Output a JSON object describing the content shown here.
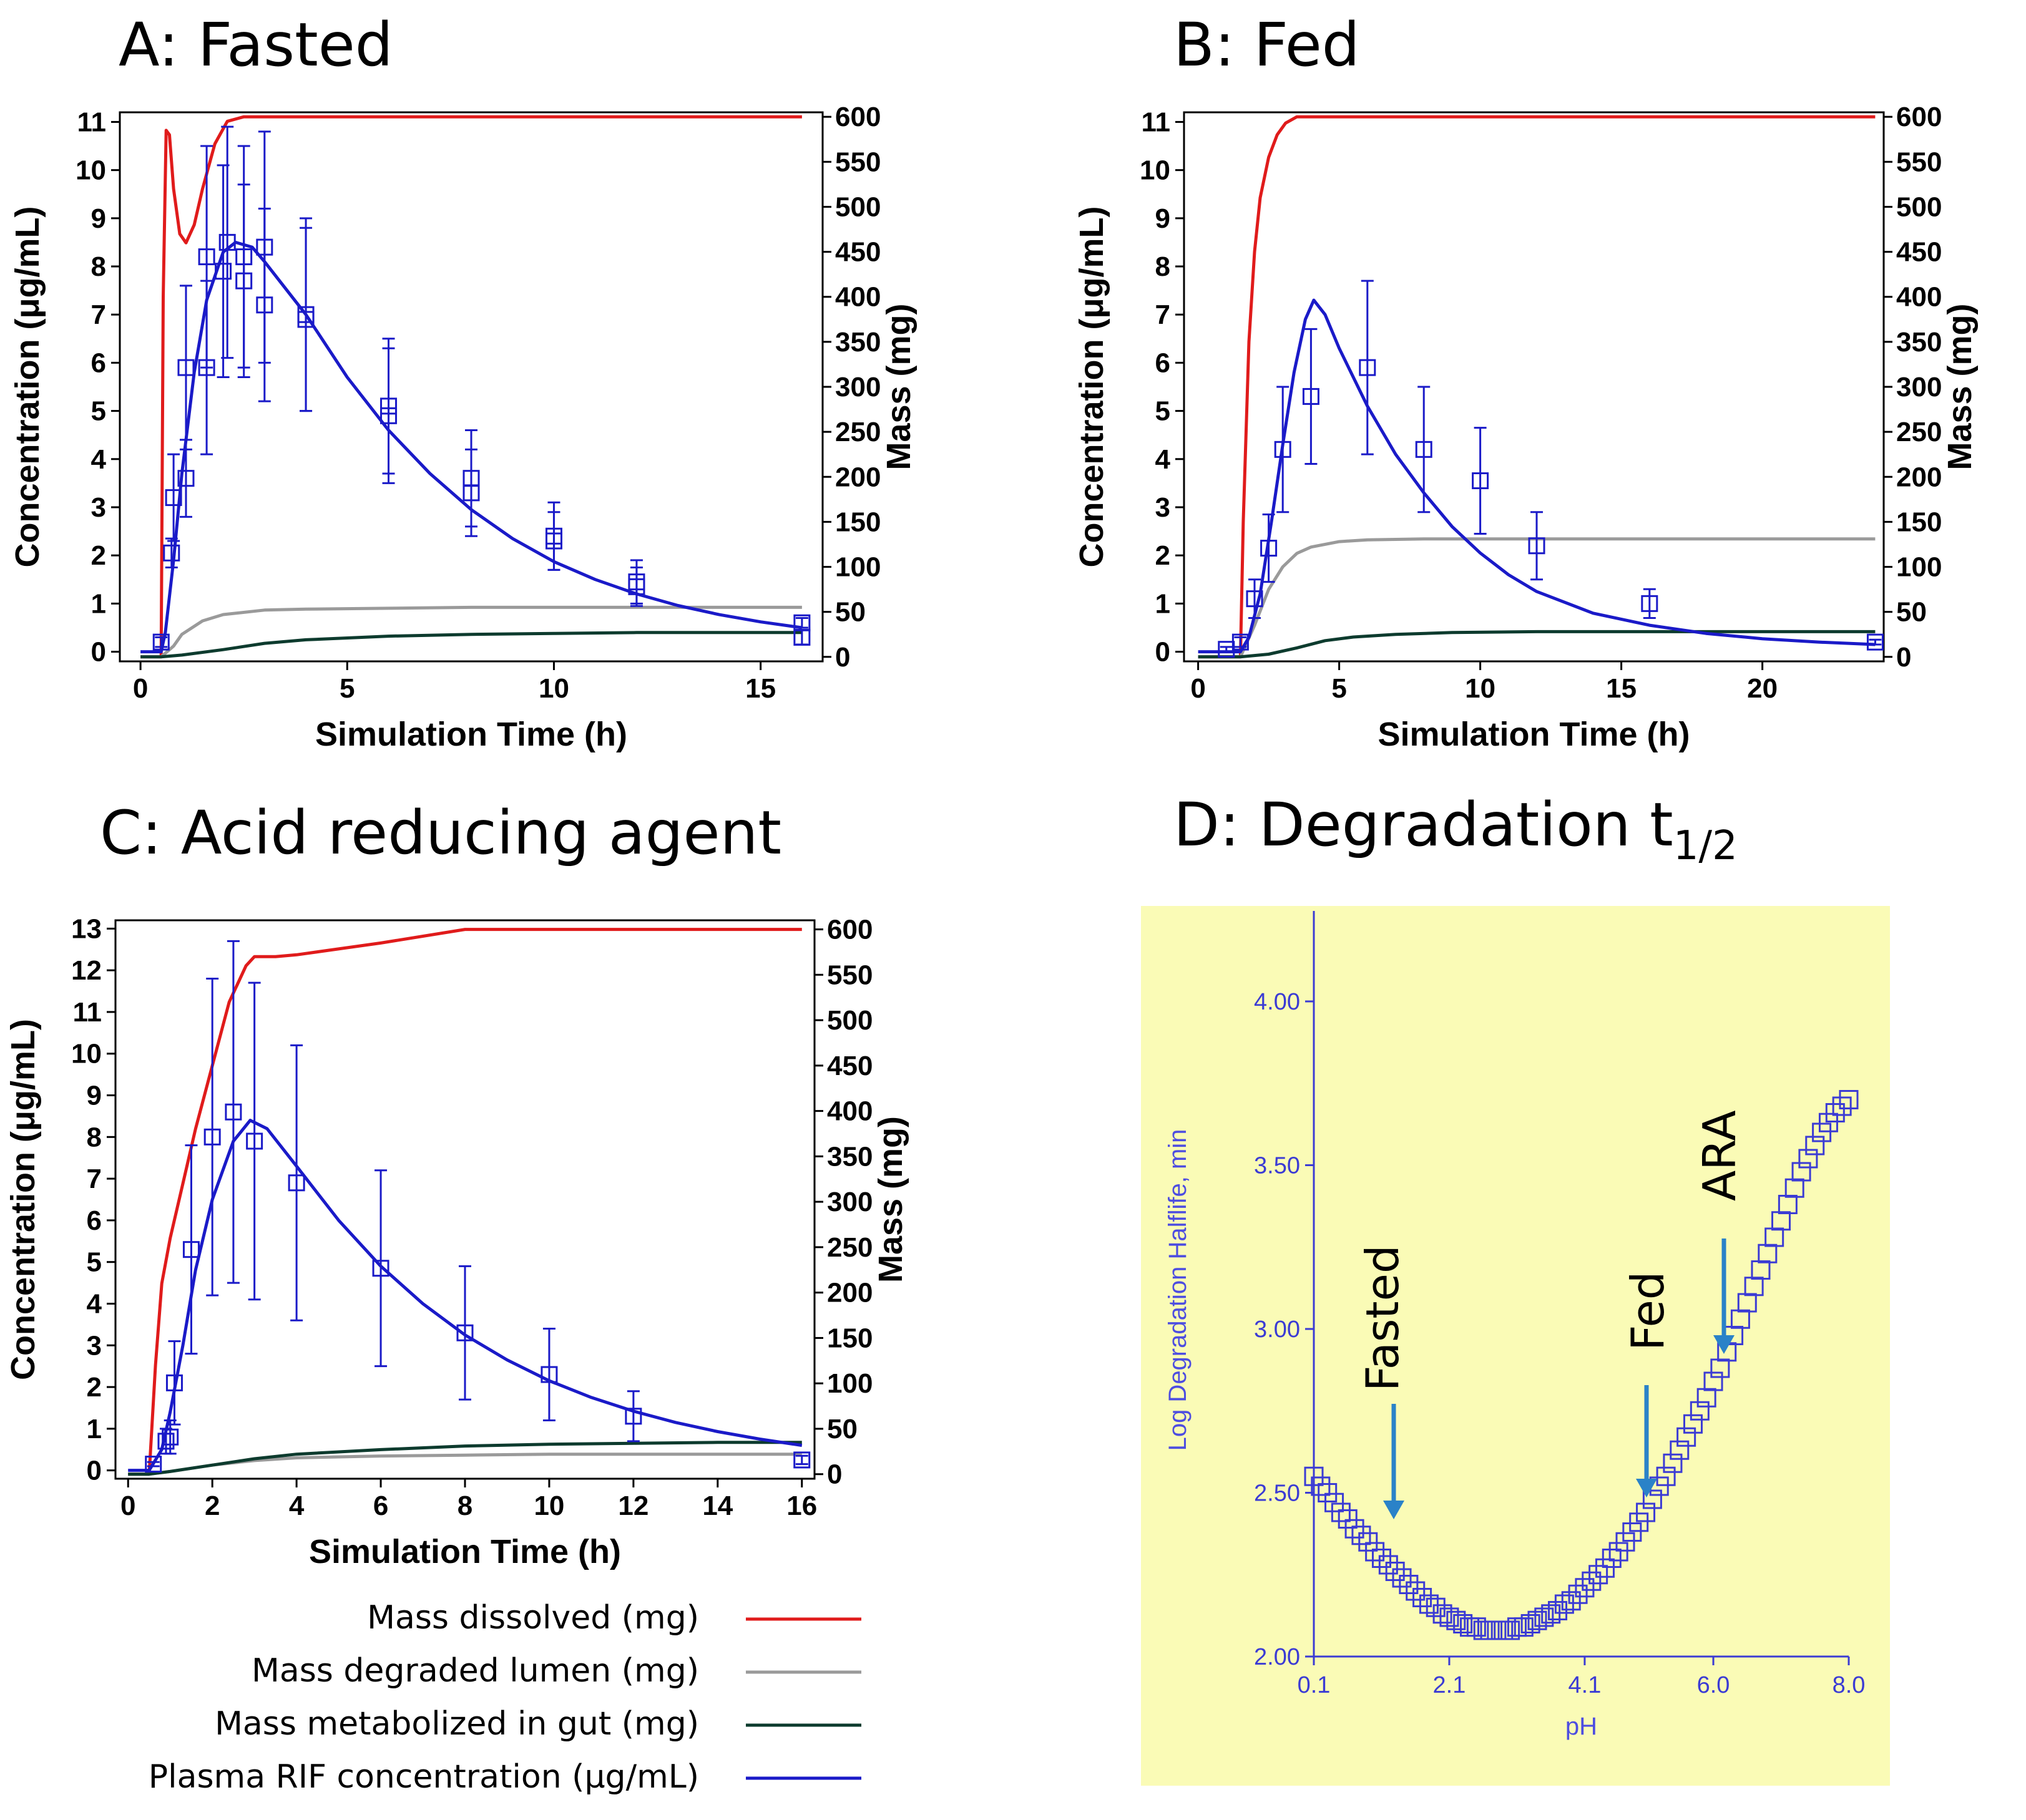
{
  "colors": {
    "dissolved": "#e01b1b",
    "degraded": "#9a9a9a",
    "metabolized": "#0d3b2e",
    "plasma": "#1a1ac8",
    "panel_d_bg": "#fafbb6",
    "panel_d_ink": "#3b3bd4",
    "arrow": "#2a82c8"
  },
  "legend": [
    {
      "label": "Mass dissolved (mg)",
      "color_key": "dissolved"
    },
    {
      "label": "Mass degraded lumen (mg)",
      "color_key": "degraded"
    },
    {
      "label": "Mass metabolized in gut (mg)",
      "color_key": "metabolized"
    },
    {
      "label": "Plasma RIF concentration (μg/mL)",
      "color_key": "plasma"
    }
  ],
  "chart_data": [
    {
      "id": "A",
      "type": "line",
      "title": "A: Fasted",
      "xlabel": "Simulation Time (h)",
      "ylabel": "Concentration (μg/mL)",
      "y2label": "Mass (mg)",
      "xlim": [
        -0.5,
        16.5
      ],
      "ylim": [
        -0.2,
        11.2
      ],
      "y2lim": [
        -5,
        605
      ],
      "xticks": [
        0,
        5,
        10,
        15
      ],
      "yticks": [
        0,
        1,
        2,
        3,
        4,
        5,
        6,
        7,
        8,
        9,
        10,
        11
      ],
      "y2ticks": [
        0,
        50,
        100,
        150,
        200,
        250,
        300,
        350,
        400,
        450,
        500,
        550,
        600
      ],
      "series": [
        {
          "name": "Mass dissolved (mg)",
          "axis": "right",
          "color_key": "dissolved",
          "x": [
            0,
            0.5,
            0.55,
            0.62,
            0.7,
            0.8,
            0.95,
            1.1,
            1.3,
            1.5,
            1.8,
            2.1,
            2.5,
            3,
            16
          ],
          "y": [
            0,
            0,
            400,
            585,
            580,
            520,
            470,
            460,
            480,
            520,
            570,
            595,
            600,
            600,
            600
          ]
        },
        {
          "name": "Mass degraded lumen (mg)",
          "axis": "right",
          "color_key": "degraded",
          "x": [
            0,
            0.5,
            0.8,
            1,
            1.5,
            2,
            3,
            4,
            6,
            8,
            10,
            16
          ],
          "y": [
            0,
            0,
            12,
            25,
            40,
            47,
            52,
            53,
            54,
            55,
            55,
            55
          ]
        },
        {
          "name": "Mass metabolized in gut (mg)",
          "axis": "right",
          "color_key": "metabolized",
          "x": [
            0,
            0.5,
            1,
            2,
            3,
            4,
            6,
            8,
            10,
            12,
            16
          ],
          "y": [
            0,
            0,
            2,
            8,
            15,
            19,
            23,
            25,
            26,
            27,
            27
          ]
        },
        {
          "name": "Plasma RIF concentration (μg/mL)",
          "axis": "left",
          "color_key": "plasma",
          "x": [
            0,
            0.5,
            0.6,
            0.8,
            1,
            1.3,
            1.6,
            2,
            2.3,
            2.7,
            3,
            4,
            5,
            6,
            7,
            8,
            9,
            10,
            11,
            12,
            13,
            14,
            15,
            16
          ],
          "y": [
            0,
            0,
            0.4,
            1.9,
            3.7,
            5.8,
            7.3,
            8.3,
            8.5,
            8.4,
            8.1,
            7.0,
            5.7,
            4.6,
            3.7,
            2.95,
            2.35,
            1.87,
            1.5,
            1.2,
            0.96,
            0.77,
            0.62,
            0.5
          ]
        }
      ],
      "observed": [
        {
          "x": 0.5,
          "y": 0.2,
          "err": 0.1
        },
        {
          "x": 0.75,
          "y": 2.05,
          "err": 0.3
        },
        {
          "x": 0.8,
          "y": 3.2,
          "err": 0.9
        },
        {
          "x": 1.1,
          "y": 3.6,
          "err": 0.8
        },
        {
          "x": 1.1,
          "y": 5.9,
          "err": 1.7
        },
        {
          "x": 1.6,
          "y": 5.9,
          "err": 1.8
        },
        {
          "x": 1.6,
          "y": 8.2,
          "err": 2.3
        },
        {
          "x": 2,
          "y": 7.9,
          "err": 2.2
        },
        {
          "x": 2.1,
          "y": 8.5,
          "err": 2.4
        },
        {
          "x": 2.5,
          "y": 7.7,
          "err": 2.0
        },
        {
          "x": 2.5,
          "y": 8.2,
          "err": 2.3
        },
        {
          "x": 3,
          "y": 7.2,
          "err": 2.0
        },
        {
          "x": 3,
          "y": 8.4,
          "err": 2.4
        },
        {
          "x": 4,
          "y": 6.9,
          "err": 1.9
        },
        {
          "x": 4,
          "y": 7.0,
          "err": 2.0
        },
        {
          "x": 6,
          "y": 4.9,
          "err": 1.4
        },
        {
          "x": 6,
          "y": 5.1,
          "err": 1.4
        },
        {
          "x": 8,
          "y": 3.3,
          "err": 0.9
        },
        {
          "x": 8,
          "y": 3.6,
          "err": 1.0
        },
        {
          "x": 10,
          "y": 2.3,
          "err": 0.6
        },
        {
          "x": 10,
          "y": 2.4,
          "err": 0.7
        },
        {
          "x": 12,
          "y": 1.35,
          "err": 0.4
        },
        {
          "x": 12,
          "y": 1.45,
          "err": 0.45
        },
        {
          "x": 16,
          "y": 0.3,
          "err": 0.15
        },
        {
          "x": 16,
          "y": 0.6,
          "err": 0.1
        }
      ]
    },
    {
      "id": "B",
      "type": "line",
      "title": "B: Fed",
      "xlabel": "Simulation Time (h)",
      "ylabel": "Concentration (μg/mL)",
      "y2label": "Mass (mg)",
      "xlim": [
        -0.5,
        24.3
      ],
      "ylim": [
        -0.2,
        11.2
      ],
      "y2lim": [
        -5,
        605
      ],
      "xticks": [
        0,
        5,
        10,
        15,
        20
      ],
      "yticks": [
        0,
        1,
        2,
        3,
        4,
        5,
        6,
        7,
        8,
        9,
        10,
        11
      ],
      "y2ticks": [
        0,
        50,
        100,
        150,
        200,
        250,
        300,
        350,
        400,
        450,
        500,
        550,
        600
      ],
      "series": [
        {
          "name": "Mass dissolved (mg)",
          "axis": "right",
          "color_key": "dissolved",
          "x": [
            0,
            1.5,
            1.6,
            1.8,
            2,
            2.2,
            2.5,
            2.8,
            3.1,
            3.5,
            24
          ],
          "y": [
            0,
            0,
            150,
            350,
            450,
            510,
            555,
            580,
            593,
            600,
            600
          ]
        },
        {
          "name": "Mass degraded lumen (mg)",
          "axis": "right",
          "color_key": "degraded",
          "x": [
            0,
            1.5,
            2,
            2.5,
            3,
            3.5,
            4,
            5,
            6,
            8,
            24
          ],
          "y": [
            0,
            0,
            35,
            75,
            100,
            115,
            122,
            128,
            130,
            131,
            131
          ]
        },
        {
          "name": "Mass metabolized in gut (mg)",
          "axis": "right",
          "color_key": "metabolized",
          "x": [
            0,
            1.5,
            2.5,
            3.5,
            4.5,
            5.5,
            7,
            9,
            12,
            24
          ],
          "y": [
            0,
            0,
            3,
            10,
            18,
            22,
            25,
            27,
            28,
            28
          ]
        },
        {
          "name": "Plasma RIF concentration (μg/mL)",
          "axis": "left",
          "color_key": "plasma",
          "x": [
            0,
            1.5,
            1.8,
            2.2,
            2.6,
            3,
            3.4,
            3.8,
            4.1,
            4.5,
            5,
            6,
            7,
            8,
            9,
            10,
            11,
            12,
            14,
            16,
            18,
            20,
            22,
            24
          ],
          "y": [
            0,
            0,
            0.3,
            1.2,
            2.7,
            4.3,
            5.8,
            6.9,
            7.3,
            7.0,
            6.3,
            5.1,
            4.1,
            3.3,
            2.6,
            2.05,
            1.6,
            1.25,
            0.8,
            0.55,
            0.38,
            0.27,
            0.2,
            0.15
          ]
        }
      ],
      "observed": [
        {
          "x": 1,
          "y": 0.05,
          "err": 0.05
        },
        {
          "x": 1.5,
          "y": 0.2,
          "err": 0.1
        },
        {
          "x": 2,
          "y": 1.1,
          "err": 0.4
        },
        {
          "x": 2.5,
          "y": 2.15,
          "err": 0.7
        },
        {
          "x": 3,
          "y": 4.2,
          "err": 1.3
        },
        {
          "x": 4,
          "y": 5.3,
          "err": 1.4
        },
        {
          "x": 6,
          "y": 5.9,
          "err": 1.8
        },
        {
          "x": 8,
          "y": 4.2,
          "err": 1.3
        },
        {
          "x": 10,
          "y": 3.55,
          "err": 1.1
        },
        {
          "x": 12,
          "y": 2.2,
          "err": 0.7
        },
        {
          "x": 16,
          "y": 1.0,
          "err": 0.3
        },
        {
          "x": 24,
          "y": 0.2,
          "err": 0.05
        }
      ]
    },
    {
      "id": "C",
      "type": "line",
      "title": "C: Acid reducing agent",
      "xlabel": "Simulation Time (h)",
      "ylabel": "Concentration (μg/mL)",
      "y2label": "Mass (mg)",
      "xlim": [
        -0.3,
        16.3
      ],
      "ylim": [
        -0.2,
        13.2
      ],
      "y2lim": [
        -5,
        610
      ],
      "xticks": [
        0,
        2,
        4,
        6,
        8,
        10,
        12,
        14,
        16
      ],
      "yticks": [
        0,
        1,
        2,
        3,
        4,
        5,
        6,
        7,
        8,
        9,
        10,
        11,
        12,
        13
      ],
      "y2ticks": [
        0,
        50,
        100,
        150,
        200,
        250,
        300,
        350,
        400,
        450,
        500,
        550,
        600
      ],
      "series": [
        {
          "name": "Mass dissolved (mg)",
          "axis": "right",
          "color_key": "dissolved",
          "x": [
            0,
            0.5,
            0.65,
            0.8,
            1,
            1.3,
            1.6,
            2,
            2.4,
            2.8,
            3,
            3.5,
            4,
            6,
            8,
            10,
            16
          ],
          "y": [
            0,
            0,
            120,
            210,
            260,
            320,
            380,
            450,
            520,
            560,
            570,
            570,
            572,
            585,
            600,
            600,
            600
          ]
        },
        {
          "name": "Mass degraded lumen (mg)",
          "axis": "right",
          "color_key": "degraded",
          "x": [
            0,
            0.5,
            1,
            2,
            3,
            4,
            6,
            8,
            10,
            12,
            16
          ],
          "y": [
            0,
            0,
            3,
            10,
            15,
            18,
            20,
            21,
            22,
            22,
            22
          ]
        },
        {
          "name": "Mass metabolized in gut (mg)",
          "axis": "right",
          "color_key": "metabolized",
          "x": [
            0,
            0.5,
            1,
            2,
            3,
            4,
            6,
            8,
            10,
            12,
            14,
            16
          ],
          "y": [
            0,
            0,
            3,
            10,
            17,
            22,
            27,
            31,
            33,
            34,
            35,
            35
          ]
        },
        {
          "name": "Plasma RIF concentration (μg/mL)",
          "axis": "left",
          "color_key": "plasma",
          "x": [
            0,
            0.5,
            0.8,
            1,
            1.3,
            1.6,
            2,
            2.5,
            2.9,
            3.3,
            4,
            5,
            6,
            7,
            8,
            9,
            10,
            11,
            12,
            13,
            14,
            15,
            16
          ],
          "y": [
            0,
            0,
            0.5,
            1.4,
            3.0,
            4.8,
            6.5,
            7.9,
            8.4,
            8.2,
            7.3,
            6.0,
            4.9,
            4.0,
            3.25,
            2.65,
            2.15,
            1.75,
            1.42,
            1.15,
            0.93,
            0.75,
            0.6
          ]
        }
      ],
      "observed": [
        {
          "x": 0.6,
          "y": 0.15,
          "err": 0.05
        },
        {
          "x": 0.9,
          "y": 0.7,
          "err": 0.3
        },
        {
          "x": 1,
          "y": 0.8,
          "err": 0.4
        },
        {
          "x": 1.1,
          "y": 2.1,
          "err": 1.0
        },
        {
          "x": 1.5,
          "y": 5.3,
          "err": 2.5
        },
        {
          "x": 2,
          "y": 8.0,
          "err": 3.8
        },
        {
          "x": 2.5,
          "y": 8.6,
          "err": 4.1
        },
        {
          "x": 3,
          "y": 7.9,
          "err": 3.8
        },
        {
          "x": 4,
          "y": 6.9,
          "err": 3.3
        },
        {
          "x": 6,
          "y": 4.85,
          "err": 2.35
        },
        {
          "x": 8,
          "y": 3.3,
          "err": 1.6
        },
        {
          "x": 10,
          "y": 2.3,
          "err": 1.1
        },
        {
          "x": 12,
          "y": 1.3,
          "err": 0.6
        },
        {
          "x": 16,
          "y": 0.25,
          "err": 0.1
        }
      ]
    },
    {
      "id": "D",
      "type": "scatter",
      "title_main": "D: Degradation t",
      "title_sub": "1/2",
      "xlabel": "pH",
      "ylabel": "Log Degradation Halflife, min",
      "xlim": [
        0.1,
        8.0
      ],
      "ylim": [
        2.0,
        4.2
      ],
      "xticks": [
        "0.1",
        "2.1",
        "4.1",
        "6.0",
        "8.0"
      ],
      "yticks": [
        "2.00",
        "2.50",
        "3.00",
        "3.50",
        "4.00"
      ],
      "points_x": [
        0.1,
        0.2,
        0.3,
        0.4,
        0.5,
        0.6,
        0.7,
        0.8,
        0.9,
        1.0,
        1.1,
        1.2,
        1.3,
        1.4,
        1.5,
        1.6,
        1.7,
        1.8,
        1.9,
        2.0,
        2.1,
        2.2,
        2.3,
        2.4,
        2.5,
        2.6,
        2.7,
        2.8,
        2.9,
        3.0,
        3.1,
        3.2,
        3.3,
        3.4,
        3.5,
        3.6,
        3.7,
        3.8,
        3.9,
        4.0,
        4.1,
        4.2,
        4.3,
        4.4,
        4.5,
        4.6,
        4.7,
        4.8,
        4.9,
        5.0,
        5.1,
        5.2,
        5.3,
        5.4,
        5.5,
        5.6,
        5.7,
        5.8,
        5.9,
        6.0,
        6.1,
        6.2,
        6.3,
        6.4,
        6.5,
        6.6,
        6.7,
        6.8,
        6.9,
        7.0,
        7.1,
        7.2,
        7.3,
        7.4,
        7.5,
        7.6,
        7.7,
        7.8,
        7.9,
        8.0
      ],
      "points_y": [
        2.55,
        2.52,
        2.5,
        2.47,
        2.44,
        2.42,
        2.39,
        2.37,
        2.35,
        2.32,
        2.3,
        2.28,
        2.26,
        2.24,
        2.22,
        2.2,
        2.18,
        2.16,
        2.15,
        2.13,
        2.12,
        2.11,
        2.1,
        2.09,
        2.09,
        2.08,
        2.08,
        2.08,
        2.08,
        2.08,
        2.09,
        2.09,
        2.1,
        2.11,
        2.12,
        2.13,
        2.14,
        2.16,
        2.17,
        2.19,
        2.21,
        2.23,
        2.25,
        2.27,
        2.3,
        2.32,
        2.35,
        2.38,
        2.41,
        2.44,
        2.48,
        2.52,
        2.55,
        2.59,
        2.63,
        2.67,
        2.71,
        2.75,
        2.79,
        2.84,
        2.88,
        2.93,
        2.98,
        3.03,
        3.08,
        3.13,
        3.18,
        3.23,
        3.28,
        3.33,
        3.38,
        3.43,
        3.48,
        3.52,
        3.56,
        3.6,
        3.63,
        3.66,
        3.68,
        3.7
      ],
      "annotations": [
        {
          "text": "Fasted",
          "ph": 1.3
        },
        {
          "text": "Fed",
          "ph": 5.0
        },
        {
          "text": "ARA",
          "ph": 6.1
        }
      ]
    }
  ]
}
